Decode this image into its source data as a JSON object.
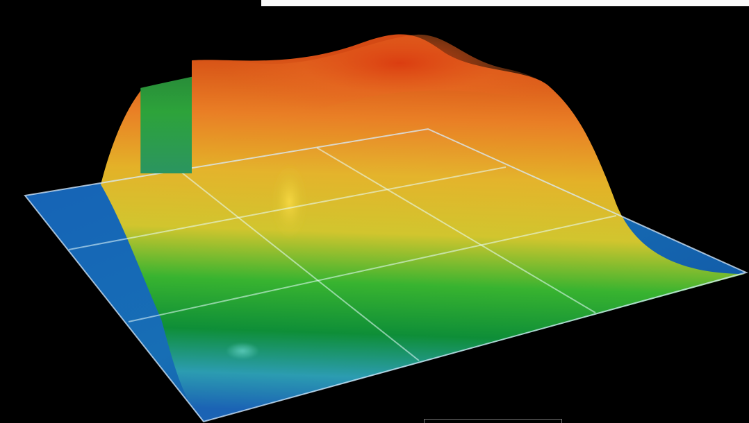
{
  "scene": {
    "type": "3d-surface",
    "palette": {
      "blue": "#1f6db5",
      "teal": "#47b9c1",
      "green": "#14a12d",
      "yellow": "#d8c72f",
      "orange": "#ee8f26",
      "red": "#d84b14",
      "grid": "#ffffff",
      "background": "#000000"
    },
    "grid": {
      "rows": 3,
      "columns": 3
    }
  }
}
